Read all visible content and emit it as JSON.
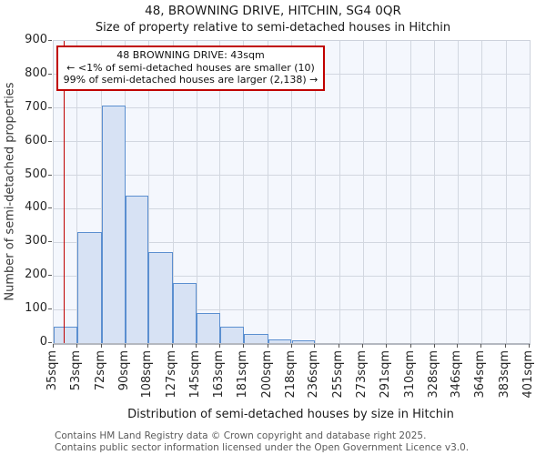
{
  "chart_data": {
    "type": "bar",
    "title": "48, BROWNING DRIVE, HITCHIN, SG4 0QR",
    "subtitle": "Size of property relative to semi-detached houses in Hitchin",
    "xlabel": "Distribution of semi-detached houses by size in Hitchin",
    "ylabel": "Number of semi-detached properties",
    "bin_edges_sqm": [
      35,
      53,
      72,
      90,
      108,
      127,
      145,
      163,
      181,
      200,
      218,
      236,
      255,
      273,
      291,
      310,
      328,
      346,
      364,
      383,
      401
    ],
    "categories": [
      "35sqm",
      "53sqm",
      "72sqm",
      "90sqm",
      "108sqm",
      "127sqm",
      "145sqm",
      "163sqm",
      "181sqm",
      "200sqm",
      "218sqm",
      "236sqm",
      "255sqm",
      "273sqm",
      "291sqm",
      "310sqm",
      "328sqm",
      "346sqm",
      "364sqm",
      "383sqm",
      "401sqm"
    ],
    "values": [
      50,
      330,
      708,
      438,
      270,
      180,
      90,
      48,
      28,
      12,
      8,
      0,
      0,
      0,
      0,
      0,
      0,
      0,
      0,
      0
    ],
    "y_ticks": [
      0,
      100,
      200,
      300,
      400,
      500,
      600,
      700,
      800,
      900
    ],
    "ylim": [
      0,
      900
    ],
    "xlim_sqm": [
      35,
      401
    ],
    "grid": true,
    "legend": "none",
    "bar_fill": "#d7e2f4",
    "bar_edge": "#5b8fd0",
    "marker": {
      "value_sqm": 43,
      "color": "#c00000",
      "label": "48 BROWNING DRIVE"
    },
    "annotation_box": {
      "line1": "48 BROWNING DRIVE: 43sqm",
      "line2": "← <1% of semi-detached houses are smaller (10)",
      "line3": "99% of semi-detached houses are larger (2,138) →"
    }
  },
  "footer": {
    "line1": "Contains HM Land Registry data © Crown copyright and database right 2025.",
    "line2": "Contains public sector information licensed under the Open Government Licence v3.0."
  }
}
